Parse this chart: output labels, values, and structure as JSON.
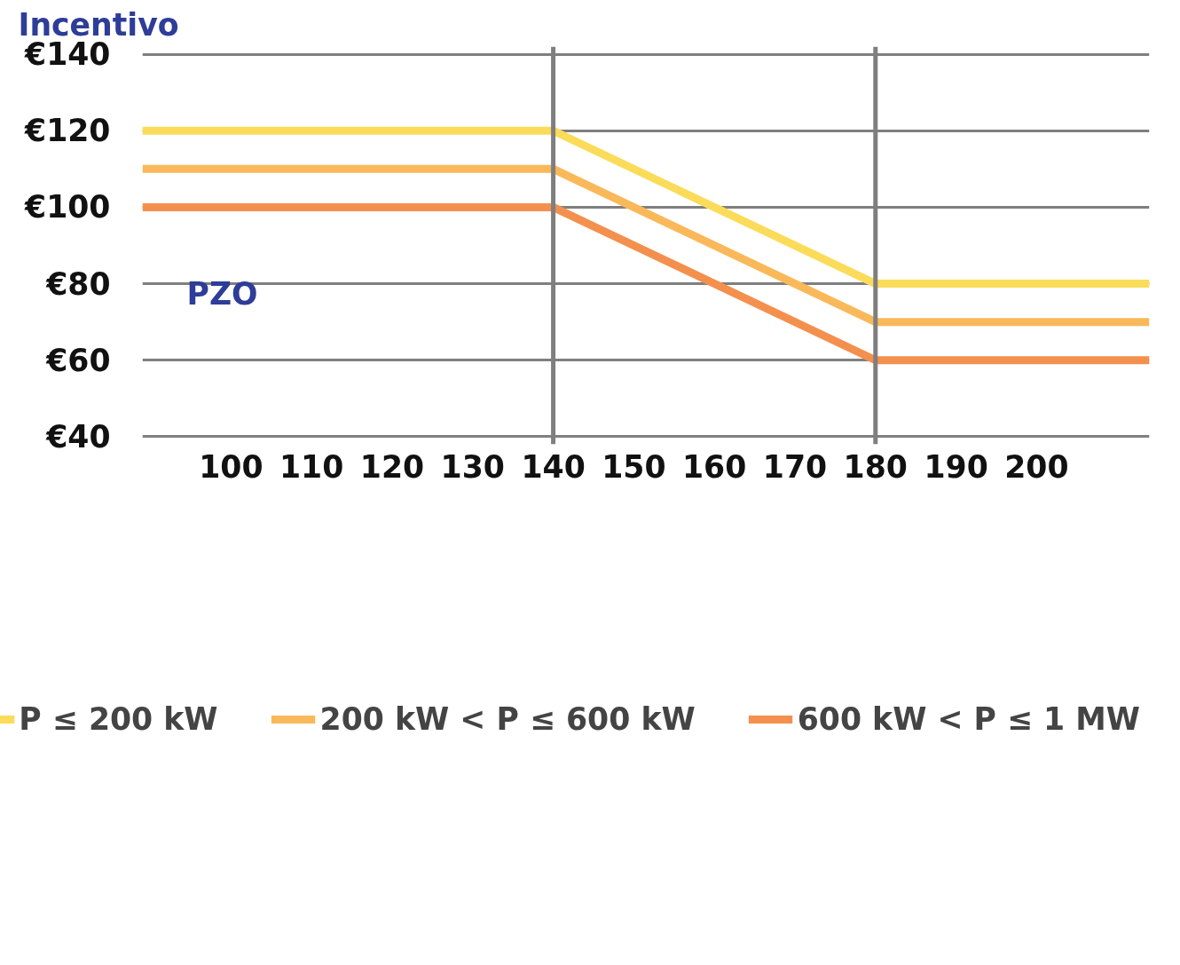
{
  "chart_data": {
    "type": "line",
    "ylabel": "Incentivo",
    "xlabel": "PZO",
    "x": [
      89,
      140,
      180,
      214
    ],
    "series": [
      {
        "name": "P ≤ 200 kW",
        "color": "#fbdc5a",
        "values": [
          120,
          120,
          80,
          80
        ]
      },
      {
        "name": "200 kW < P ≤ 600 kW",
        "color": "#f9b95a",
        "values": [
          110,
          110,
          70,
          70
        ]
      },
      {
        "name": "600 kW < P ≤ 1 MW",
        "color": "#f4904e",
        "values": [
          100,
          100,
          60,
          60
        ]
      }
    ],
    "xlim": [
      89,
      214
    ],
    "ylim": [
      38,
      142
    ],
    "xticks": [
      100,
      110,
      120,
      130,
      140,
      150,
      160,
      170,
      180,
      190,
      200
    ],
    "yticks": [
      {
        "value": 40,
        "label": "€40"
      },
      {
        "value": 60,
        "label": "€60"
      },
      {
        "value": 80,
        "label": "€80"
      },
      {
        "value": 100,
        "label": "€100"
      },
      {
        "value": 120,
        "label": "€120"
      },
      {
        "value": 140,
        "label": "€140"
      }
    ],
    "ref_lines": [
      {
        "axis": "x",
        "value": 140,
        "color": "#7f7f7f"
      },
      {
        "axis": "x",
        "value": 180,
        "color": "#7f7f7f"
      }
    ],
    "grid": "y",
    "legend": "bottom",
    "line_style": "solid",
    "marker": "none"
  }
}
